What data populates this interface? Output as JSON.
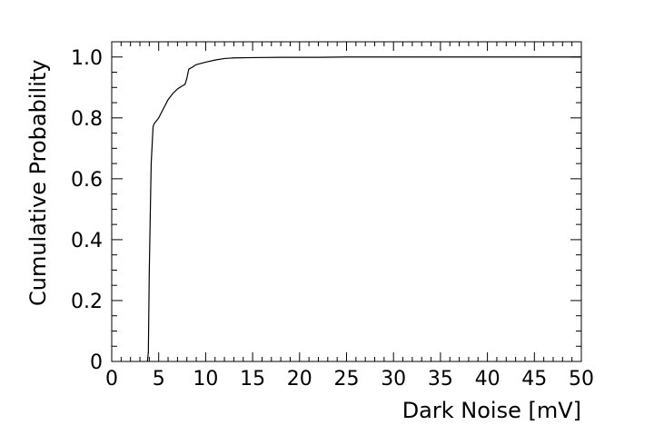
{
  "chart_data": {
    "type": "line",
    "title": "",
    "xlabel": "Dark Noise [mV]",
    "ylabel": "Cumulative Probability",
    "xlim": [
      0,
      50
    ],
    "ylim": [
      0,
      1.05
    ],
    "x_ticks": [
      "0",
      "5",
      "10",
      "15",
      "20",
      "25",
      "30",
      "35",
      "40",
      "45",
      "50"
    ],
    "y_ticks": [
      "0",
      "0.2",
      "0.4",
      "0.6",
      "0.8",
      "1.0"
    ],
    "grid": false,
    "legend": "none",
    "line_color": "#000000",
    "series": [
      {
        "x": [
          3.8,
          3.9,
          4.0,
          4.2,
          4.4,
          4.5,
          5.0,
          5.5,
          6.0,
          6.5,
          7.0,
          7.5,
          7.8,
          8.0,
          8.2,
          8.5,
          9.0,
          10.0,
          11.0,
          12.0,
          13.0,
          15.0,
          18.0,
          22.0,
          25.0,
          30.0,
          40.0,
          50.0
        ],
        "y": [
          0.0,
          0.03,
          0.3,
          0.65,
          0.77,
          0.78,
          0.8,
          0.83,
          0.86,
          0.88,
          0.895,
          0.905,
          0.91,
          0.93,
          0.96,
          0.965,
          0.975,
          0.983,
          0.99,
          0.995,
          0.997,
          0.998,
          0.999,
          0.999,
          1.0,
          1.0,
          1.0,
          1.0
        ]
      }
    ]
  }
}
